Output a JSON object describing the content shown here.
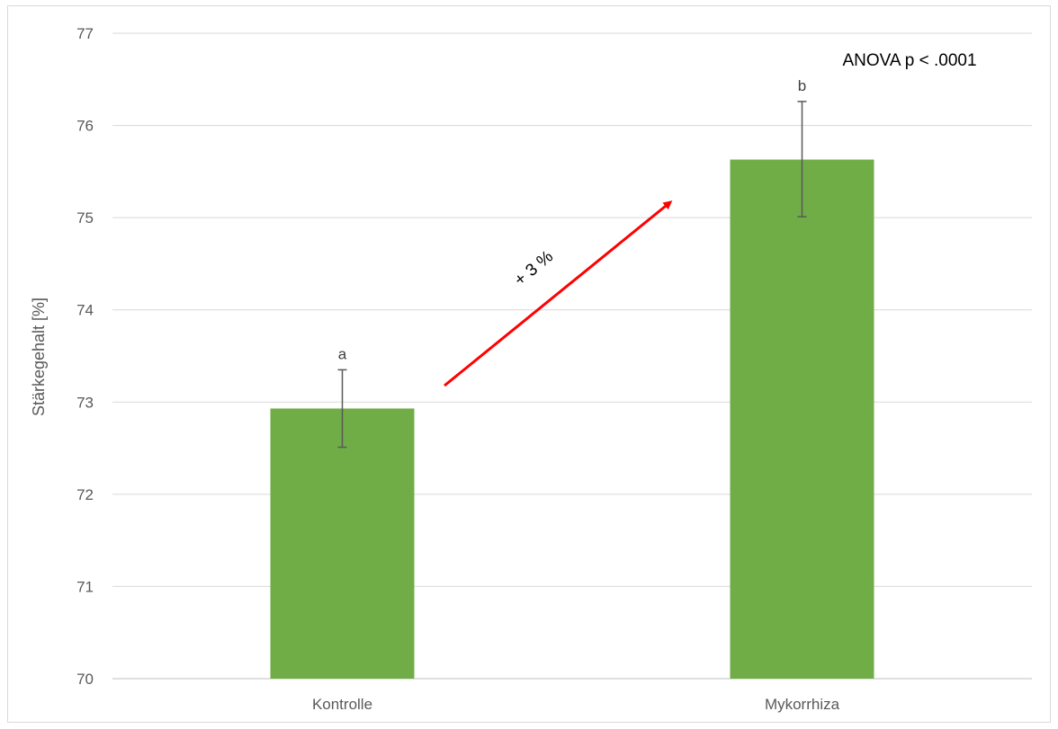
{
  "chart_data": {
    "type": "bar",
    "title": "",
    "xlabel": "",
    "ylabel": "Stärkegehalt [%]",
    "ylim": [
      70,
      77
    ],
    "yticks": [
      70,
      71,
      72,
      73,
      74,
      75,
      76,
      77
    ],
    "grid": true,
    "categories": [
      "Kontrolle",
      "Mykorrhiza"
    ],
    "series": [
      {
        "values": [
          72.93,
          75.63
        ],
        "error_low": [
          72.51,
          75.01
        ],
        "error_high": [
          73.35,
          76.26
        ],
        "significance_letters": [
          "a",
          "b"
        ],
        "color": "#70ad47"
      }
    ],
    "annotations": {
      "anova": "ANOVA p < .0001",
      "change": "+ 3 %",
      "arrow_color": "#ff0000"
    }
  }
}
